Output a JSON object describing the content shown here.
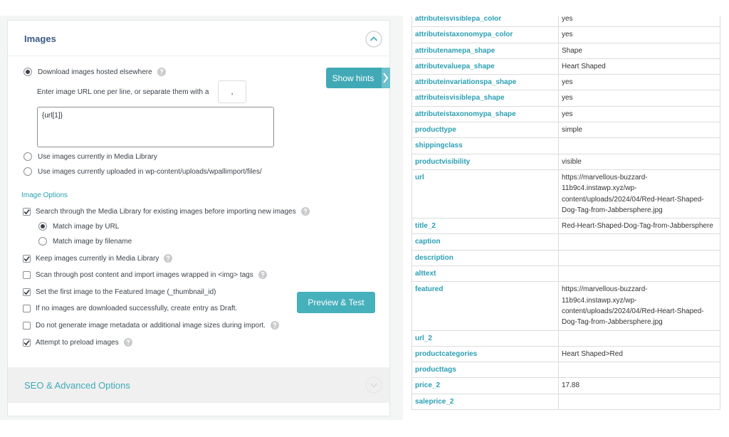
{
  "left_panel": {
    "section_title": "Images",
    "download_option": {
      "label": "Download images hosted elsewhere",
      "selected": true,
      "help": true
    },
    "url_instruction": "Enter image URL one per line, or separate them with a",
    "separator": ",",
    "url_input": "{url[1]}",
    "media_library_option": {
      "label": "Use images currently in Media Library",
      "selected": false
    },
    "uploaded_option": {
      "label": "Use images currently uploaded in wp-content/uploads/wpallimport/files/",
      "selected": false
    },
    "image_options_heading": "Image Options",
    "options": [
      {
        "label": "Search through the Media Library for existing images before importing new images",
        "checked": true,
        "help": true,
        "sub_options": [
          {
            "label": "Match image by URL",
            "selected": true
          },
          {
            "label": "Match image by filename",
            "selected": false
          }
        ]
      },
      {
        "label": "Keep images currently in Media Library",
        "checked": true,
        "help": true
      },
      {
        "label": "Scan through post content and import images wrapped in <img> tags",
        "checked": false,
        "help": true
      },
      {
        "label": "Set the first image to the Featured Image (_thumbnail_id)",
        "checked": true,
        "help": false
      },
      {
        "label": "If no images are downloaded successfully, create entry as Draft.",
        "checked": false,
        "help": false
      },
      {
        "label": "Do not generate image metadata or additional image sizes during import.",
        "checked": false,
        "help": true
      },
      {
        "label": "Attempt to preload images",
        "checked": true,
        "help": true
      }
    ],
    "collapsed_section": "SEO & Advanced Options"
  },
  "buttons": {
    "show_hints": "Show hints",
    "preview_test": "Preview & Test"
  },
  "table": {
    "rows": [
      {
        "key": "attributeisvisiblepa_color",
        "value": "yes"
      },
      {
        "key": "attributeistaxonomypa_color",
        "value": "yes"
      },
      {
        "key": "attributenamepa_shape",
        "value": "Shape"
      },
      {
        "key": "attributevaluepa_shape",
        "value": "Heart Shaped"
      },
      {
        "key": "attributeinvariationspa_shape",
        "value": "yes"
      },
      {
        "key": "attributeisvisiblepa_shape",
        "value": "yes"
      },
      {
        "key": "attributeistaxonomypa_shape",
        "value": "yes"
      },
      {
        "key": "producttype",
        "value": "simple"
      },
      {
        "key": "shippingclass"
      },
      {
        "key": "productvisibility",
        "value": "visible"
      },
      {
        "key": "url",
        "value": "https://marvellous-buzzard-11b9c4.instawp.xyz/wp-content/uploads/2024/04/Red-Heart-Shaped-Dog-Tag-from-Jabbersphere.jpg"
      },
      {
        "key": "title_2",
        "value": "Red-Heart-Shaped-Dog-Tag-from-Jabbersphere"
      },
      {
        "key": "caption"
      },
      {
        "key": "description"
      },
      {
        "key": "alttext"
      },
      {
        "key": "featured",
        "value": "https://marvellous-buzzard-11b9c4.instawp.xyz/wp-content/uploads/2024/04/Red-Heart-Shaped-Dog-Tag-from-Jabbersphere.jpg"
      },
      {
        "key": "url_2"
      },
      {
        "key": "productcategories",
        "value": "Heart Shaped>Red"
      },
      {
        "key": "producttags"
      },
      {
        "key": "price_2",
        "value": "17.88"
      },
      {
        "key": "saleprice_2"
      }
    ]
  }
}
